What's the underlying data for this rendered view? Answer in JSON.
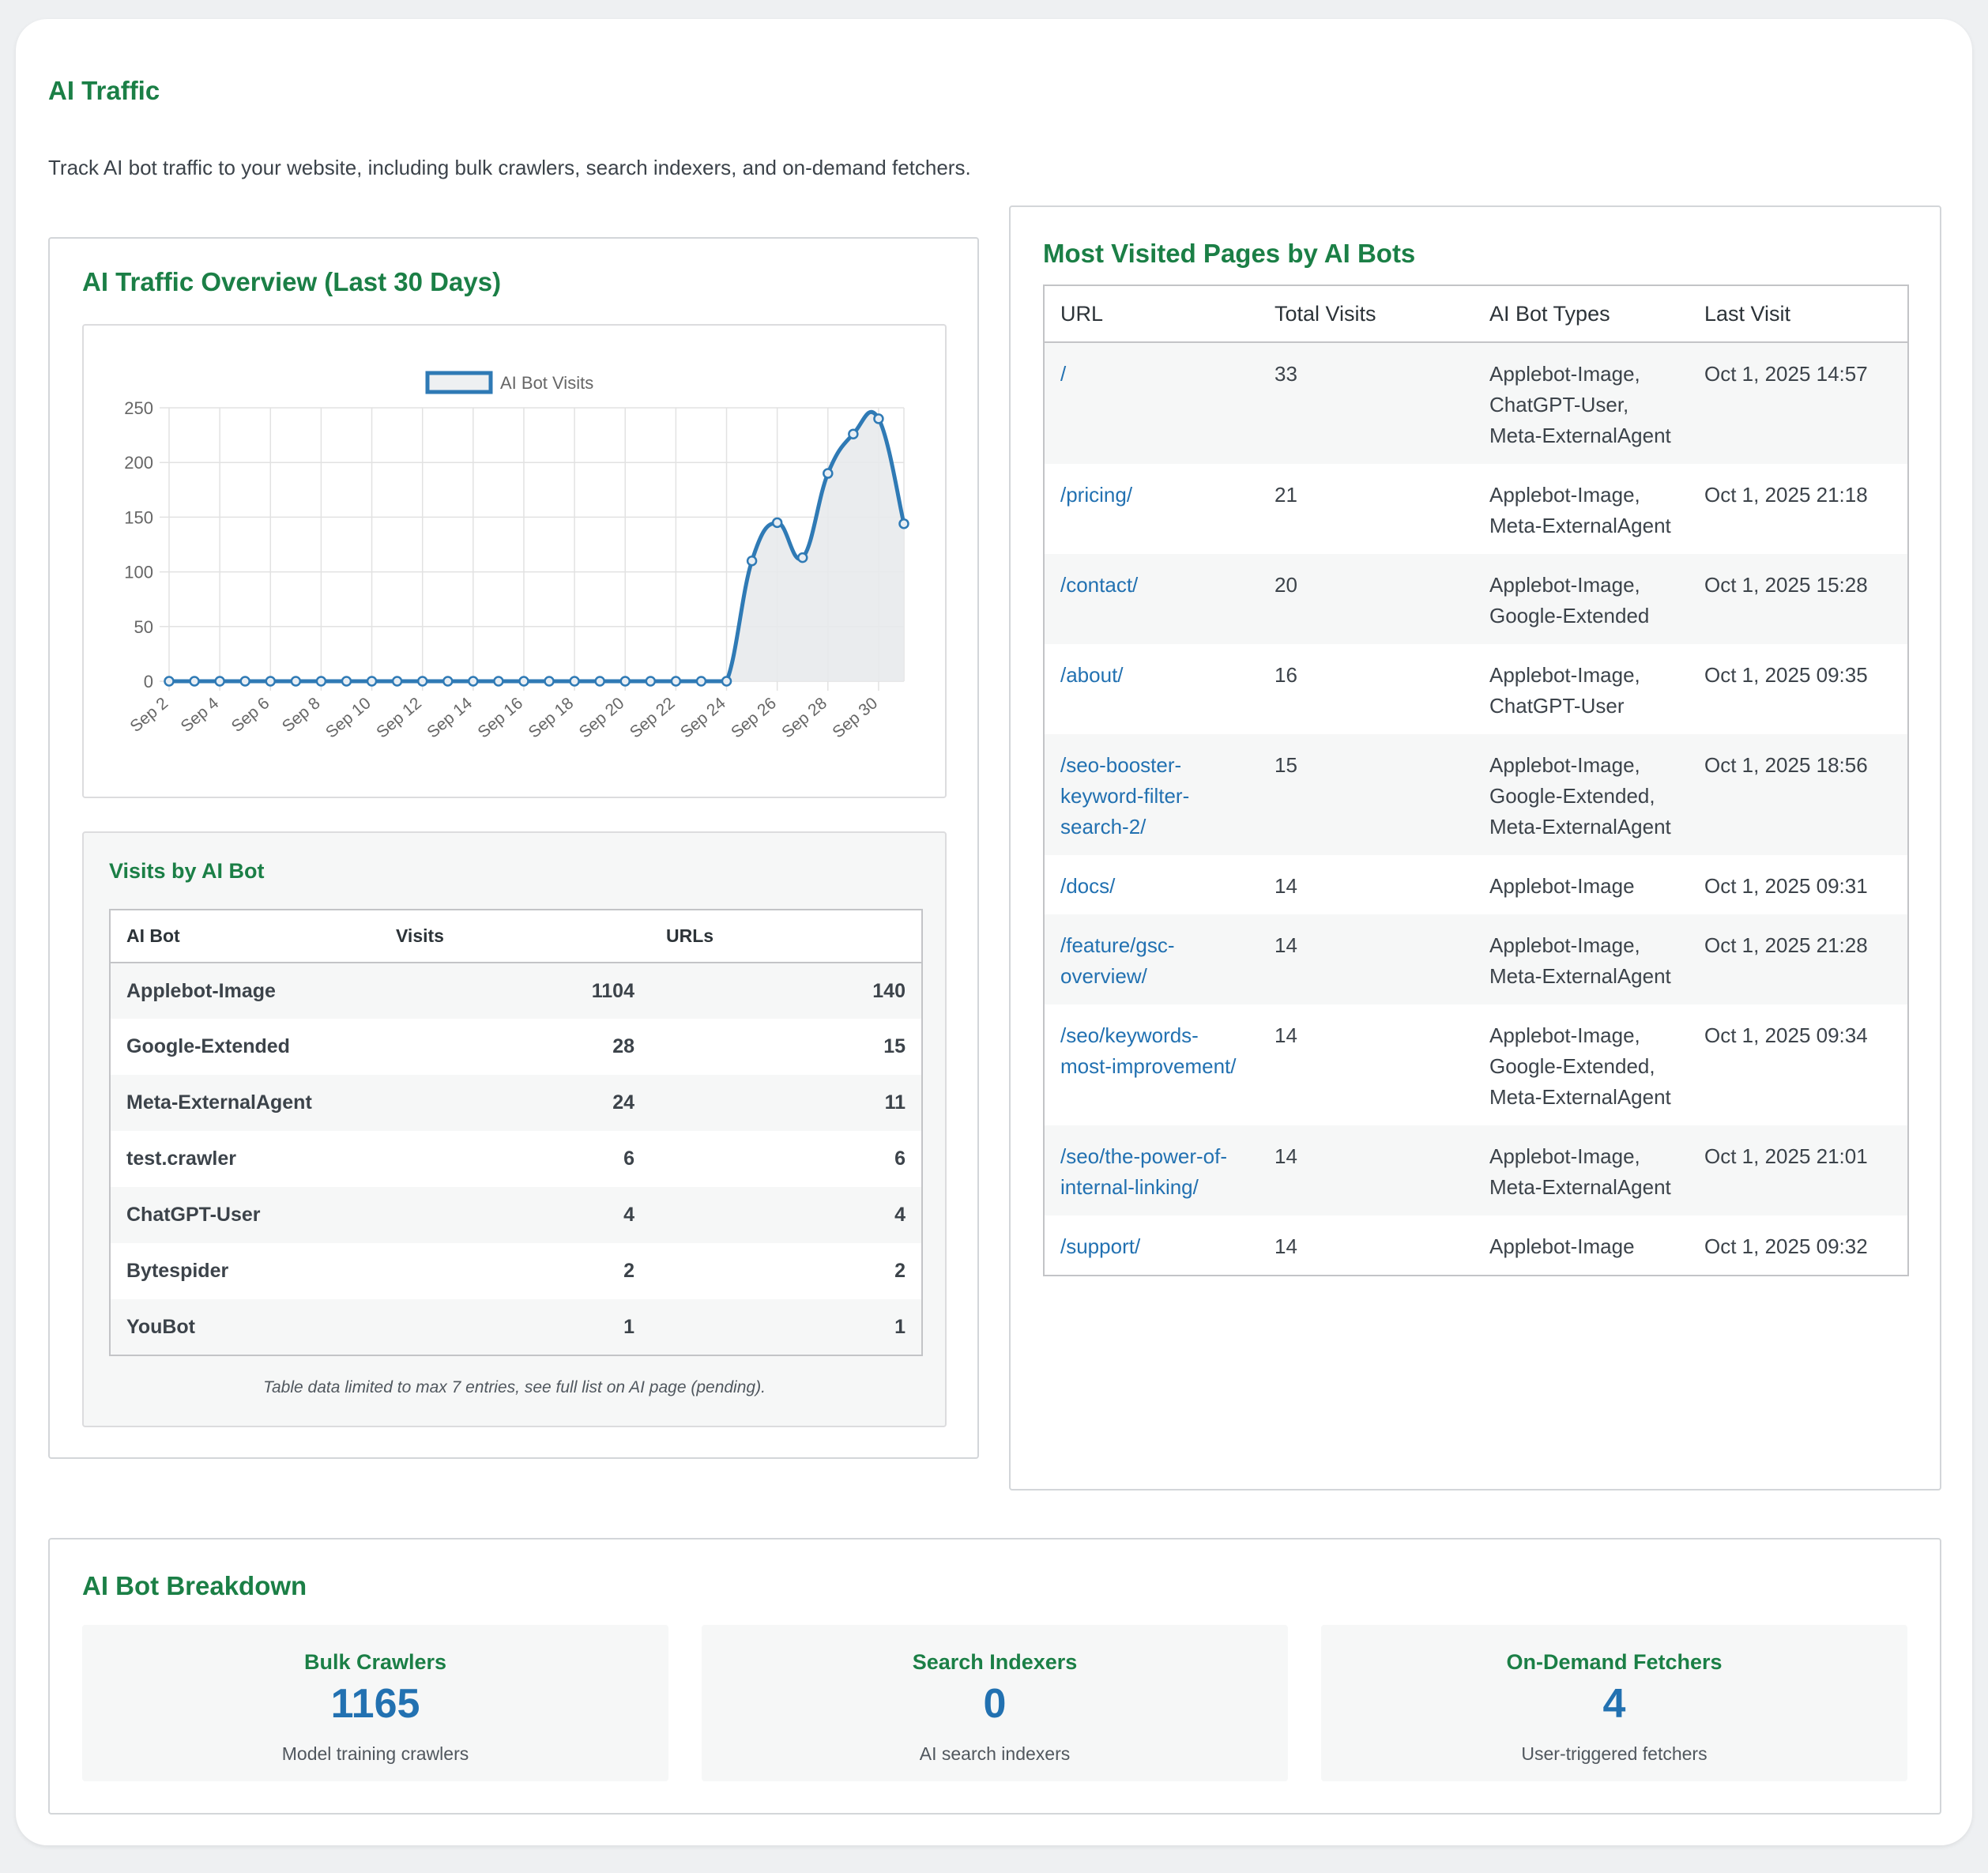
{
  "header": {
    "title": "AI Traffic",
    "description": "Track AI bot traffic to your website, including bulk crawlers, search indexers, and on-demand fetchers."
  },
  "overview": {
    "title": "AI Traffic Overview (Last 30 Days)"
  },
  "chart_data": {
    "type": "line",
    "title": "",
    "legend": "top",
    "series": [
      {
        "name": "AI Bot Visits",
        "values": [
          0,
          0,
          0,
          0,
          0,
          0,
          0,
          0,
          0,
          0,
          0,
          0,
          0,
          0,
          0,
          0,
          0,
          0,
          0,
          0,
          0,
          0,
          0,
          110,
          145,
          113,
          190,
          226,
          240,
          144
        ]
      }
    ],
    "x": [
      "Sep 2",
      "Sep 3",
      "Sep 4",
      "Sep 5",
      "Sep 6",
      "Sep 7",
      "Sep 8",
      "Sep 9",
      "Sep 10",
      "Sep 11",
      "Sep 12",
      "Sep 13",
      "Sep 14",
      "Sep 15",
      "Sep 16",
      "Sep 17",
      "Sep 18",
      "Sep 19",
      "Sep 20",
      "Sep 21",
      "Sep 22",
      "Sep 23",
      "Sep 24",
      "Sep 25",
      "Sep 26",
      "Sep 27",
      "Sep 28",
      "Sep 29",
      "Sep 30",
      "Oct 1"
    ],
    "x_tick_labels": [
      "Sep 2",
      "Sep 4",
      "Sep 6",
      "Sep 8",
      "Sep 10",
      "Sep 12",
      "Sep 14",
      "Sep 16",
      "Sep 18",
      "Sep 20",
      "Sep 22",
      "Sep 24",
      "Sep 26",
      "Sep 28",
      "Sep 30"
    ],
    "y_ticks": [
      "0",
      "50",
      "100",
      "150",
      "200",
      "250"
    ],
    "ylim": [
      0,
      250
    ],
    "grid": true,
    "line_color": "#2f7ab5",
    "fill_color": "#e8eaec"
  },
  "bots": {
    "title": "Visits by AI Bot",
    "columns": [
      "AI Bot",
      "Visits",
      "URLs"
    ],
    "rows": [
      {
        "name": "Applebot-Image",
        "visits": "1104",
        "urls": "140"
      },
      {
        "name": "Google-Extended",
        "visits": "28",
        "urls": "15"
      },
      {
        "name": "Meta-ExternalAgent",
        "visits": "24",
        "urls": "11"
      },
      {
        "name": "test.crawler",
        "visits": "6",
        "urls": "6"
      },
      {
        "name": "ChatGPT-User",
        "visits": "4",
        "urls": "4"
      },
      {
        "name": "Bytespider",
        "visits": "2",
        "urls": "2"
      },
      {
        "name": "YouBot",
        "visits": "1",
        "urls": "1"
      }
    ],
    "footnote": "Table data limited to max 7 entries, see full list on AI page (pending)."
  },
  "pages": {
    "title": "Most Visited Pages by AI Bots",
    "columns": [
      "URL",
      "Total Visits",
      "AI Bot Types",
      "Last Visit"
    ],
    "rows": [
      {
        "url": "/",
        "visits": "33",
        "bots": "Applebot-Image, ChatGPT-User, Meta-ExternalAgent",
        "last": "Oct 1, 2025 14:57"
      },
      {
        "url": "/pricing/",
        "visits": "21",
        "bots": "Applebot-Image, Meta-ExternalAgent",
        "last": "Oct 1, 2025 21:18"
      },
      {
        "url": "/contact/",
        "visits": "20",
        "bots": "Applebot-Image, Google-Extended",
        "last": "Oct 1, 2025 15:28"
      },
      {
        "url": "/about/",
        "visits": "16",
        "bots": "Applebot-Image, ChatGPT-User",
        "last": "Oct 1, 2025 09:35"
      },
      {
        "url": "/seo-booster-keyword-filter-search-2/",
        "visits": "15",
        "bots": "Applebot-Image, Google-Extended, Meta-ExternalAgent",
        "last": "Oct 1, 2025 18:56"
      },
      {
        "url": "/docs/",
        "visits": "14",
        "bots": "Applebot-Image",
        "last": "Oct 1, 2025 09:31"
      },
      {
        "url": "/feature/gsc-overview/",
        "visits": "14",
        "bots": "Applebot-Image, Meta-ExternalAgent",
        "last": "Oct 1, 2025 21:28"
      },
      {
        "url": "/seo/keywords-most-improvement/",
        "visits": "14",
        "bots": "Applebot-Image, Google-Extended, Meta-ExternalAgent",
        "last": "Oct 1, 2025 09:34"
      },
      {
        "url": "/seo/the-power-of-internal-linking/",
        "visits": "14",
        "bots": "Applebot-Image, Meta-ExternalAgent",
        "last": "Oct 1, 2025 21:01"
      },
      {
        "url": "/support/",
        "visits": "14",
        "bots": "Applebot-Image",
        "last": "Oct 1, 2025 09:32"
      }
    ]
  },
  "breakdown": {
    "title": "AI Bot Breakdown",
    "items": [
      {
        "label": "Bulk Crawlers",
        "value": "1165",
        "desc": "Model training crawlers"
      },
      {
        "label": "Search Indexers",
        "value": "0",
        "desc": "AI search indexers"
      },
      {
        "label": "On-Demand Fetchers",
        "value": "4",
        "desc": "User-triggered fetchers"
      }
    ]
  }
}
